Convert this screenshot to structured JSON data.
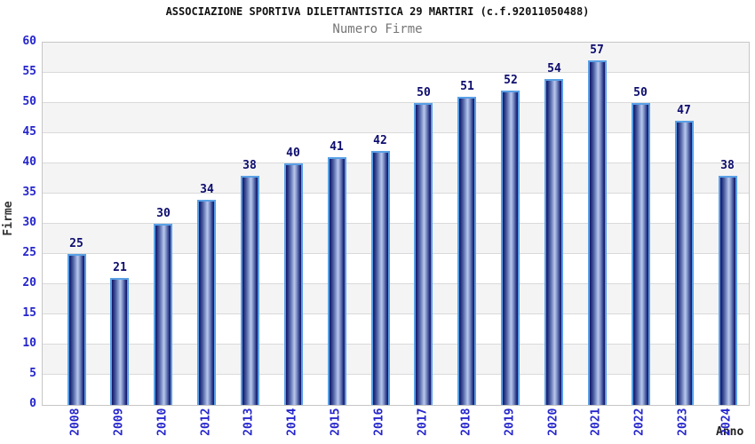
{
  "chart_data": {
    "type": "bar",
    "title": "ASSOCIAZIONE SPORTIVA DILETTANTISTICA 29 MARTIRI (c.f.92011050488)",
    "subtitle": "Numero Firme",
    "xlabel": "Anno",
    "ylabel": "Firme",
    "categories": [
      "2008",
      "2009",
      "2010",
      "2012",
      "2013",
      "2014",
      "2015",
      "2016",
      "2017",
      "2018",
      "2019",
      "2020",
      "2021",
      "2022",
      "2023",
      "2024"
    ],
    "values": [
      25,
      21,
      30,
      34,
      38,
      40,
      41,
      42,
      50,
      51,
      52,
      54,
      57,
      50,
      47,
      38
    ],
    "ylim": [
      0,
      60
    ],
    "ytick_step": 5,
    "yticks": [
      0,
      5,
      10,
      15,
      20,
      25,
      30,
      35,
      40,
      45,
      50,
      55,
      60
    ],
    "grid": "horizontal-bands",
    "legend": "none",
    "bar_value_labels": true,
    "colors": {
      "bar_dark": "#141468",
      "bar_light": "#bac7ea",
      "bar_border": "#5aa0e6",
      "value_label": "#0c0c6e",
      "tick_label": "#2525cd",
      "title": "#111111",
      "subtitle": "#767676",
      "band_gray": "#f4f4f4",
      "band_white": "#ffffff",
      "gridline": "#dadada",
      "plot_border": "#c6c6c6",
      "background": "#ffffff"
    }
  }
}
